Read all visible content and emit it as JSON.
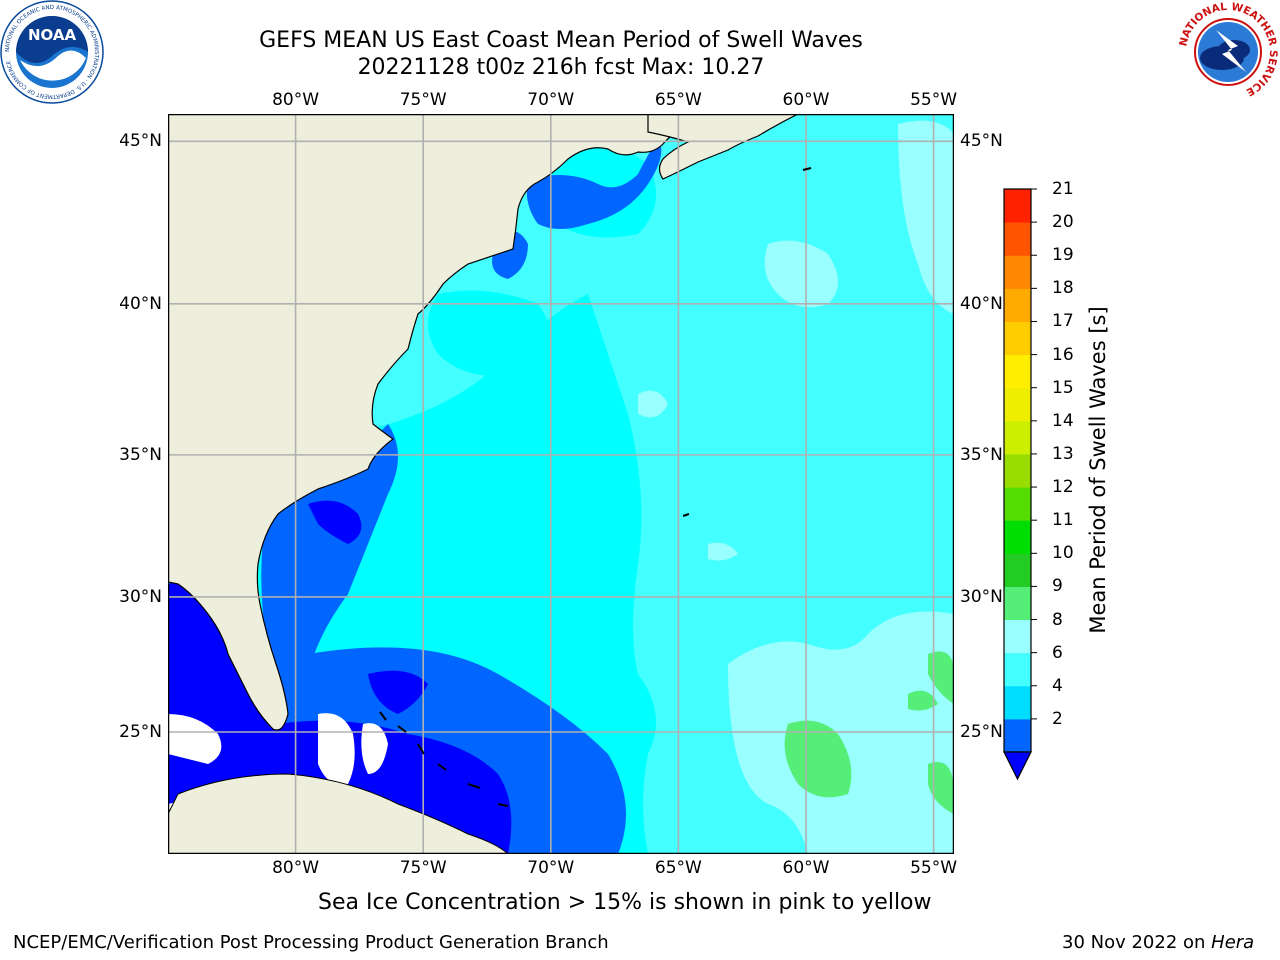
{
  "title": {
    "line1": "GEFS MEAN US East Coast Mean Period of Swell Waves",
    "line2": "20221128 t00z 216h fcst   Max: 10.27"
  },
  "map": {
    "lon_labels": [
      "80°W",
      "75°W",
      "70°W",
      "65°W",
      "60°W",
      "55°W"
    ],
    "lat_labels": [
      "45°N",
      "40°N",
      "35°N",
      "30°N",
      "25°N"
    ],
    "lon_values": [
      -80,
      -75,
      -70,
      -65,
      -60,
      -55
    ],
    "lat_values": [
      45,
      40,
      35,
      30,
      25
    ],
    "extent": {
      "lon": [
        -85,
        -54.2
      ],
      "lat": [
        20.3,
        45.8
      ]
    },
    "colors": {
      "land": "#eeeedd",
      "grid": "#b0b0b0",
      "coast": "#000000"
    }
  },
  "colorbar": {
    "title": "Mean Period of Swell Waves [s]",
    "labels": [
      "21",
      "20",
      "19",
      "18",
      "17",
      "16",
      "15",
      "14",
      "13",
      "12",
      "11",
      "10",
      "9",
      "8",
      "6",
      "4",
      "2"
    ],
    "levels": [
      2,
      4,
      6,
      8,
      9,
      10,
      11,
      12,
      13,
      14,
      15,
      16,
      17,
      18,
      19,
      20,
      21
    ],
    "colors": [
      "#0066ff",
      "#00ddff",
      "#44ffff",
      "#99ffff",
      "#55ee77",
      "#22cc22",
      "#00dd00",
      "#55dd00",
      "#99dd00",
      "#ccee00",
      "#eeee00",
      "#ffee00",
      "#ffcc00",
      "#ffaa00",
      "#ff8800",
      "#ff5500",
      "#ff2200",
      "#ff0000"
    ],
    "under_color": "#0000ff"
  },
  "note": "Sea Ice Concentration > 15% is shown in pink to yellow",
  "footer": {
    "left": "NCEP/EMC/Verification Post Processing Product Generation Branch",
    "date": "30 Nov 2022 on ",
    "machine": "Hera"
  },
  "logos": {
    "noaa_text": "NOAA",
    "noaa_ring": "NATIONAL OCEANIC AND ATMOSPHERIC ADMINISTRATION · U.S. DEPARTMENT OF COMMERCE",
    "nws_ring": "NATIONAL WEATHER SERVICE"
  }
}
